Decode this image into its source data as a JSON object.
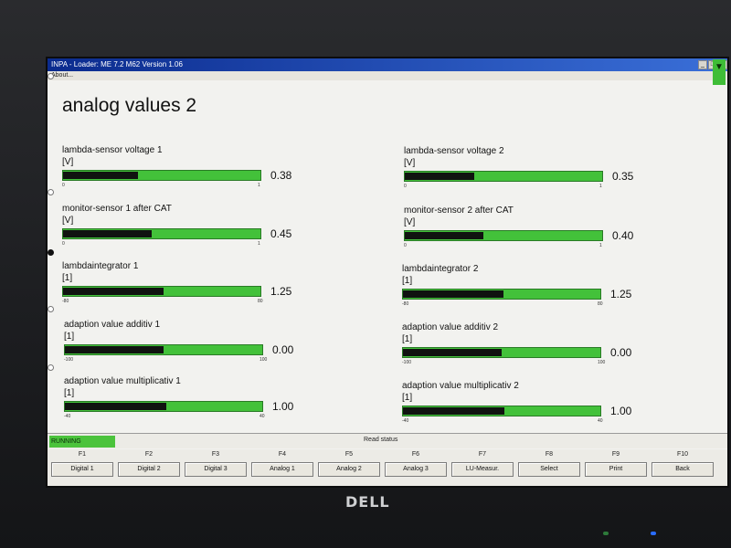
{
  "window": {
    "title": "INPA - Loader:  ME 7.2 M62 Version 1.06",
    "menu": "About..."
  },
  "page_title": "analog values 2",
  "gauges": [
    {
      "label": "lambda-sensor voltage 1",
      "unit": "[V]",
      "min": "0",
      "max": "1",
      "value": "0.38",
      "fill": 0.38,
      "color": "#43c13a"
    },
    {
      "label": "lambda-sensor voltage 2",
      "unit": "[V]",
      "min": "0",
      "max": "1",
      "value": "0.35",
      "fill": 0.35,
      "color": "#43c13a"
    },
    {
      "label": "monitor-sensor 1   after CAT",
      "unit": "[V]",
      "min": "0",
      "max": "1",
      "value": "0.45",
      "fill": 0.45,
      "color": "#43c13a"
    },
    {
      "label": "monitor-sensor 2   after CAT",
      "unit": "[V]",
      "min": "0",
      "max": "1",
      "value": "0.40",
      "fill": 0.4,
      "color": "#43c13a"
    },
    {
      "label": "lambdaintegrator 1",
      "unit": "[1]",
      "min": "-80",
      "max": "80",
      "value": "1.25",
      "fill": 0.508,
      "color": "#43c13a"
    },
    {
      "label": "lambdaintegrator 2",
      "unit": "[1]",
      "min": "-80",
      "max": "80",
      "value": "1.25",
      "fill": 0.508,
      "color": "#43c13a"
    },
    {
      "label": "adaption value additiv 1",
      "unit": "[1]",
      "min": "-100",
      "max": "100",
      "value": "0.00",
      "fill": 0.5,
      "color": "#43c13a"
    },
    {
      "label": "adaption value additiv 2",
      "unit": "[1]",
      "min": "-100",
      "max": "100",
      "value": "0.00",
      "fill": 0.5,
      "color": "#43c13a"
    },
    {
      "label": "adaption value multiplicativ 1",
      "unit": "[1]",
      "min": "-40",
      "max": "40",
      "value": "1.00",
      "fill": 0.5125,
      "color": "#43c13a"
    },
    {
      "label": "adaption value multiplicativ 2",
      "unit": "[1]",
      "min": "-40",
      "max": "40",
      "value": "1.00",
      "fill": 0.5125,
      "color": "#43c13a"
    }
  ],
  "status": {
    "running": "RUNNING",
    "read_status": "Read status"
  },
  "fkeys": [
    {
      "key": "F1",
      "label": "Digital 1"
    },
    {
      "key": "F2",
      "label": "Digital 2"
    },
    {
      "key": "F3",
      "label": "Digital 3"
    },
    {
      "key": "F4",
      "label": "Analog 1"
    },
    {
      "key": "F5",
      "label": "Analog 2"
    },
    {
      "key": "F6",
      "label": "Analog 3"
    },
    {
      "key": "F7",
      "label": "LU-Measur."
    },
    {
      "key": "F8",
      "label": "Select"
    },
    {
      "key": "F9",
      "label": "Print"
    },
    {
      "key": "F10",
      "label": "Back"
    }
  ],
  "brand": "DELL"
}
